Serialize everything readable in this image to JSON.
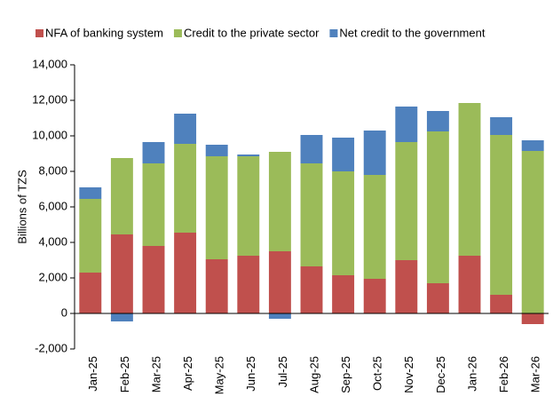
{
  "chart_data": {
    "type": "stacked_bar",
    "y_label": "Billions of TZS",
    "categories": [
      "Jan-25",
      "Feb-25",
      "Mar-25",
      "Apr-25",
      "May-25",
      "Jun-25",
      "Jul-25",
      "Aug-25",
      "Sep-25",
      "Oct-25",
      "Nov-25",
      "Dec-25",
      "Jan-26",
      "Feb-26",
      "Mar-26"
    ],
    "series": [
      {
        "name": "NFA of banking system",
        "color": "#c0504d",
        "values": [
          2300,
          4450,
          3800,
          4550,
          3050,
          3250,
          3500,
          2650,
          2150,
          1950,
          3000,
          1700,
          3250,
          1050,
          -600
        ]
      },
      {
        "name": "Credit to the private sector",
        "color": "#9bbb59",
        "values": [
          4150,
          4300,
          4650,
          5000,
          5800,
          5600,
          5600,
          5800,
          5850,
          5850,
          6650,
          8550,
          8600,
          9000,
          9150
        ]
      },
      {
        "name": "Net credit to the government",
        "color": "#4f81bd",
        "values": [
          650,
          -450,
          1200,
          1700,
          650,
          100,
          -300,
          1600,
          1900,
          2500,
          2000,
          1150,
          0,
          1000,
          600
        ]
      }
    ],
    "ylim": [
      -2000,
      14000
    ],
    "yticks": [
      {
        "value": -2000,
        "label": "-2,000"
      },
      0,
      {
        "value": 2000,
        "label": "2,000"
      },
      {
        "value": 4000,
        "label": "4,000"
      },
      {
        "value": 6000,
        "label": "6,000"
      },
      {
        "value": 8000,
        "label": "8,000"
      },
      {
        "value": 10000,
        "label": "10,000"
      },
      {
        "value": 12000,
        "label": "12,000"
      },
      {
        "value": 14000,
        "label": "14,000"
      }
    ],
    "legend": "top"
  }
}
